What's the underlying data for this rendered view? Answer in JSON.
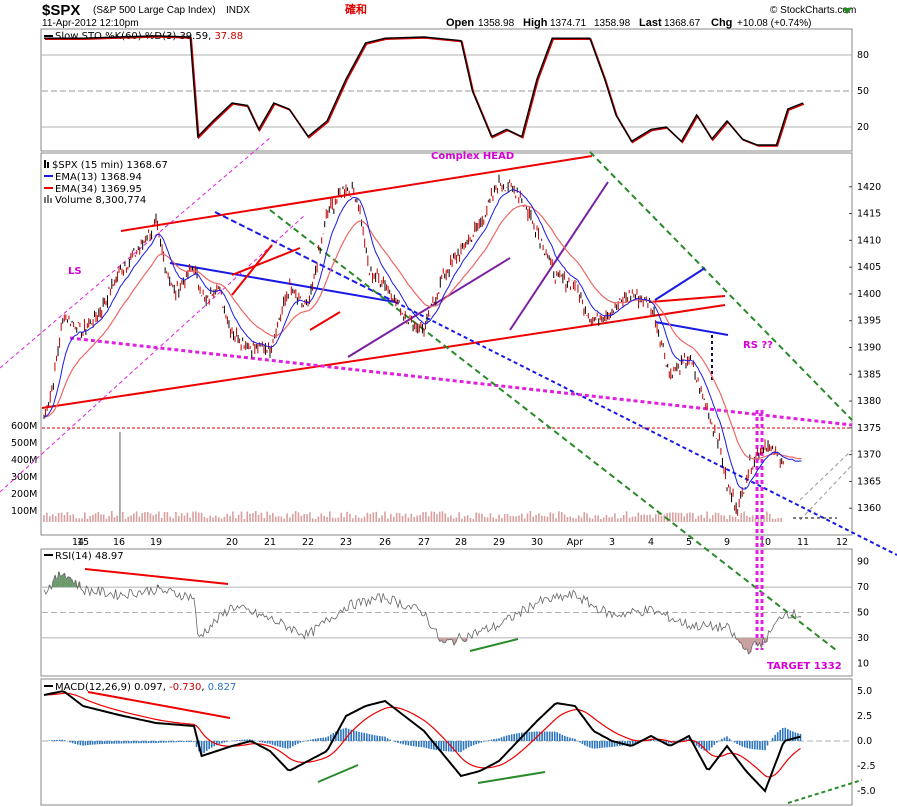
{
  "header": {
    "symbol": "$SPX",
    "name": "(S&P 500 Large Cap Index)",
    "exchange": "INDX",
    "datetime": "11-Apr-2012 12:10pm",
    "stamp": "確和",
    "open_label": "Open",
    "open": "1358.98",
    "high_label": "High",
    "high": "1374.71",
    "low_value": "1358.98",
    "last_label": "Last",
    "last": "1368.67",
    "chg_label": "Chg",
    "chg": "+10.08 (+0.74%)",
    "brand": "© StockCharts.com"
  },
  "panels": {
    "sto": {
      "label": "Slow STO %K(60) %D(3)",
      "k": "39.59",
      "d": "37.88"
    },
    "price": {
      "label": "$SPX (15 min)",
      "value": "1368.67",
      "ema13_label": "EMA(13)",
      "ema13": "1368.94",
      "ema34_label": "EMA(34)",
      "ema34": "1369.95",
      "volume_label": "Volume",
      "volume": "8,300,774"
    },
    "rsi": {
      "label": "RSI(14)",
      "value": "48.97"
    },
    "macd": {
      "label": "MACD(12,26,9)",
      "macd": "0.097",
      "signal": "-0.730",
      "hist": "0.827"
    }
  },
  "annotations": {
    "complex_head": "Complex HEAD",
    "ls": "LS",
    "rs": "RS ??",
    "target": "TARGET 1332"
  },
  "colors": {
    "price_up": "#c00000",
    "ema13": "#1a1ae6",
    "ema34": "#ee6666",
    "trend_red": "#ee0000",
    "trend_blue": "#1a1ae6",
    "purple": "#7b1fa2",
    "magenta": "#e020e0",
    "green_dash": "#2a8a2a",
    "rsi_green": "#6b9b6b",
    "rsi_red": "#c9a0a0",
    "macd_hist": "#2a74c0"
  },
  "chart_data": {
    "type": "line",
    "x_labels": [
      "14",
      "15",
      "16",
      "19",
      "20",
      "21",
      "22",
      "23",
      "26",
      "27",
      "28",
      "29",
      "30",
      "Apr",
      "3",
      "4",
      "5",
      "9",
      "10",
      "11",
      "12"
    ],
    "price": {
      "ylim": [
        1355,
        1425
      ],
      "yticks": [
        1360,
        1365,
        1370,
        1375,
        1380,
        1385,
        1390,
        1395,
        1400,
        1405,
        1410,
        1415,
        1420
      ],
      "series": [
        {
          "name": "$SPX (15 min)",
          "x": [
            0,
            0.2,
            0.5,
            1,
            1.5,
            2,
            2.5,
            3,
            3.3,
            3.5,
            4,
            4.3,
            4.6,
            5,
            5.5,
            6,
            6.5,
            7,
            7.5,
            8,
            8.3,
            8.6,
            9,
            9.5,
            10,
            10.5,
            11,
            11.5,
            12,
            12.5,
            13,
            13.5,
            14,
            14.2,
            14.5,
            15,
            15.5,
            16,
            16.5,
            17,
            17.5,
            17.8,
            18,
            18.3,
            18.6,
            19,
            19.3,
            19.6,
            20
          ],
          "values": [
            1377,
            1382,
            1396,
            1393,
            1397,
            1404,
            1408,
            1413,
            1404,
            1400,
            1405,
            1398,
            1402,
            1393,
            1390,
            1390,
            1401,
            1397,
            1415,
            1420,
            1418,
            1404,
            1402,
            1396,
            1393,
            1403,
            1408,
            1413,
            1421,
            1419,
            1412,
            1403,
            1402,
            1398,
            1395,
            1397,
            1400,
            1398,
            1385,
            1388,
            1378,
            1372,
            1364,
            1360,
            1368,
            1372,
            1370,
            1368,
            1369
          ]
        },
        {
          "name": "EMA(13)",
          "values_ref": "smoothed price"
        },
        {
          "name": "EMA(34)",
          "values_ref": "smoothed price"
        }
      ]
    },
    "volume": {
      "ylim": [
        0,
        700
      ],
      "yticks": [
        "100M",
        "200M",
        "300M",
        "400M",
        "500M",
        "600M"
      ]
    },
    "sto": {
      "ylim": [
        0,
        100
      ],
      "yticks": [
        20,
        50,
        80
      ]
    },
    "rsi": {
      "ylim": [
        0,
        100
      ],
      "yticks": [
        10,
        30,
        50,
        70,
        90
      ]
    },
    "macd": {
      "ylim": [
        -5,
        5
      ],
      "yticks": [
        "5.0",
        "2.5",
        "0.0",
        "-2.5",
        "-5.0"
      ]
    }
  }
}
